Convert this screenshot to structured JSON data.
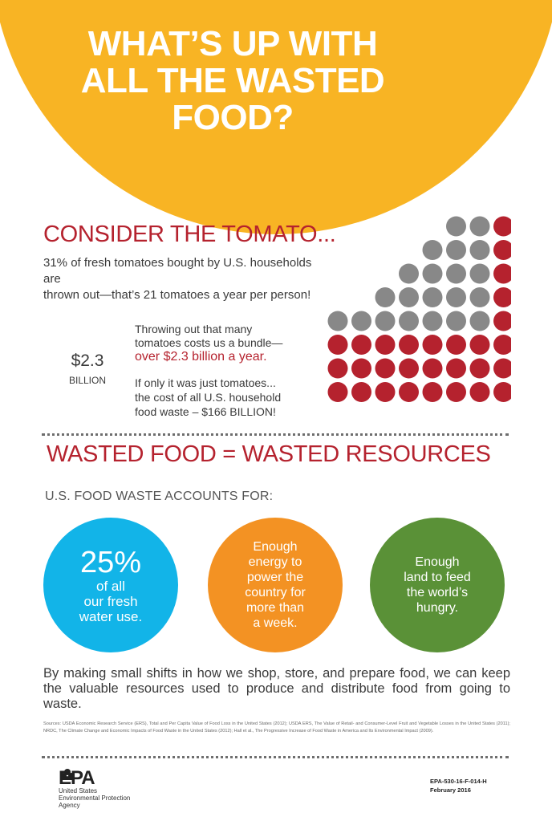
{
  "header": {
    "title_lines": [
      "WHAT’S UP WITH",
      "ALL THE WASTED",
      "FOOD?"
    ]
  },
  "tomato_section": {
    "heading": "CONSIDER THE TOMATO...",
    "intro_lines": [
      "31% of fresh tomatoes bought by U.S. households are",
      "thrown out—that’s 21 tomatoes a year per person!"
    ],
    "money_amount": "$2.3",
    "money_unit": "BILLION",
    "bundle_lines": [
      "Throwing out that many",
      "tomatoes costs us a bundle—"
    ],
    "bundle_highlight": "over $2.3 billion a year.",
    "waste_lines": [
      "If only it was just tomatoes...",
      "the cost of all U.S. household",
      "food waste – $166 BILLION!"
    ],
    "dot_colors": {
      "wasted": "#b5222e",
      "kept": "#888888"
    }
  },
  "resources_section": {
    "heading": "WASTED FOOD = WASTED RESOURCES",
    "accounts_label": "U.S. FOOD WASTE ACCOUNTS FOR:",
    "water": {
      "big": "25%",
      "lines": [
        "of all",
        "our fresh",
        "water use."
      ],
      "color": "#12b4e8"
    },
    "energy": {
      "lines": [
        "Enough",
        "energy to",
        "power the",
        "country for",
        "more than",
        "a week."
      ],
      "color": "#f39223"
    },
    "land": {
      "lines": [
        "Enough",
        "land to feed",
        "the world’s",
        "hungry."
      ],
      "color": "#5a9137"
    }
  },
  "closing": "By making small shifts in how we shop, store, and prepare food, we can keep the valuable resources used to produce and distribute food from going to waste.",
  "sources": "Sources: USDA Economic Research Service (ERS), Total and Per Capita Value of Food Loss in the United States (2012); USDA ERS, The Value of Retail- and Consumer-Level Fruit and Vegetable Losses in the United States (2011); NRDC, The Climate Change and Economic Impacts of Food Waste in the United States (2012); Hall et al., The Progressive Increase of Food Waste in America and Its Environmental Impact (2009).",
  "footer": {
    "logo_text": "EPA",
    "agency_lines": [
      "United States",
      "Environmental Protection",
      "Agency"
    ],
    "doc_number": "EPA-530-16-F-014-H",
    "doc_date": "February 2016"
  }
}
